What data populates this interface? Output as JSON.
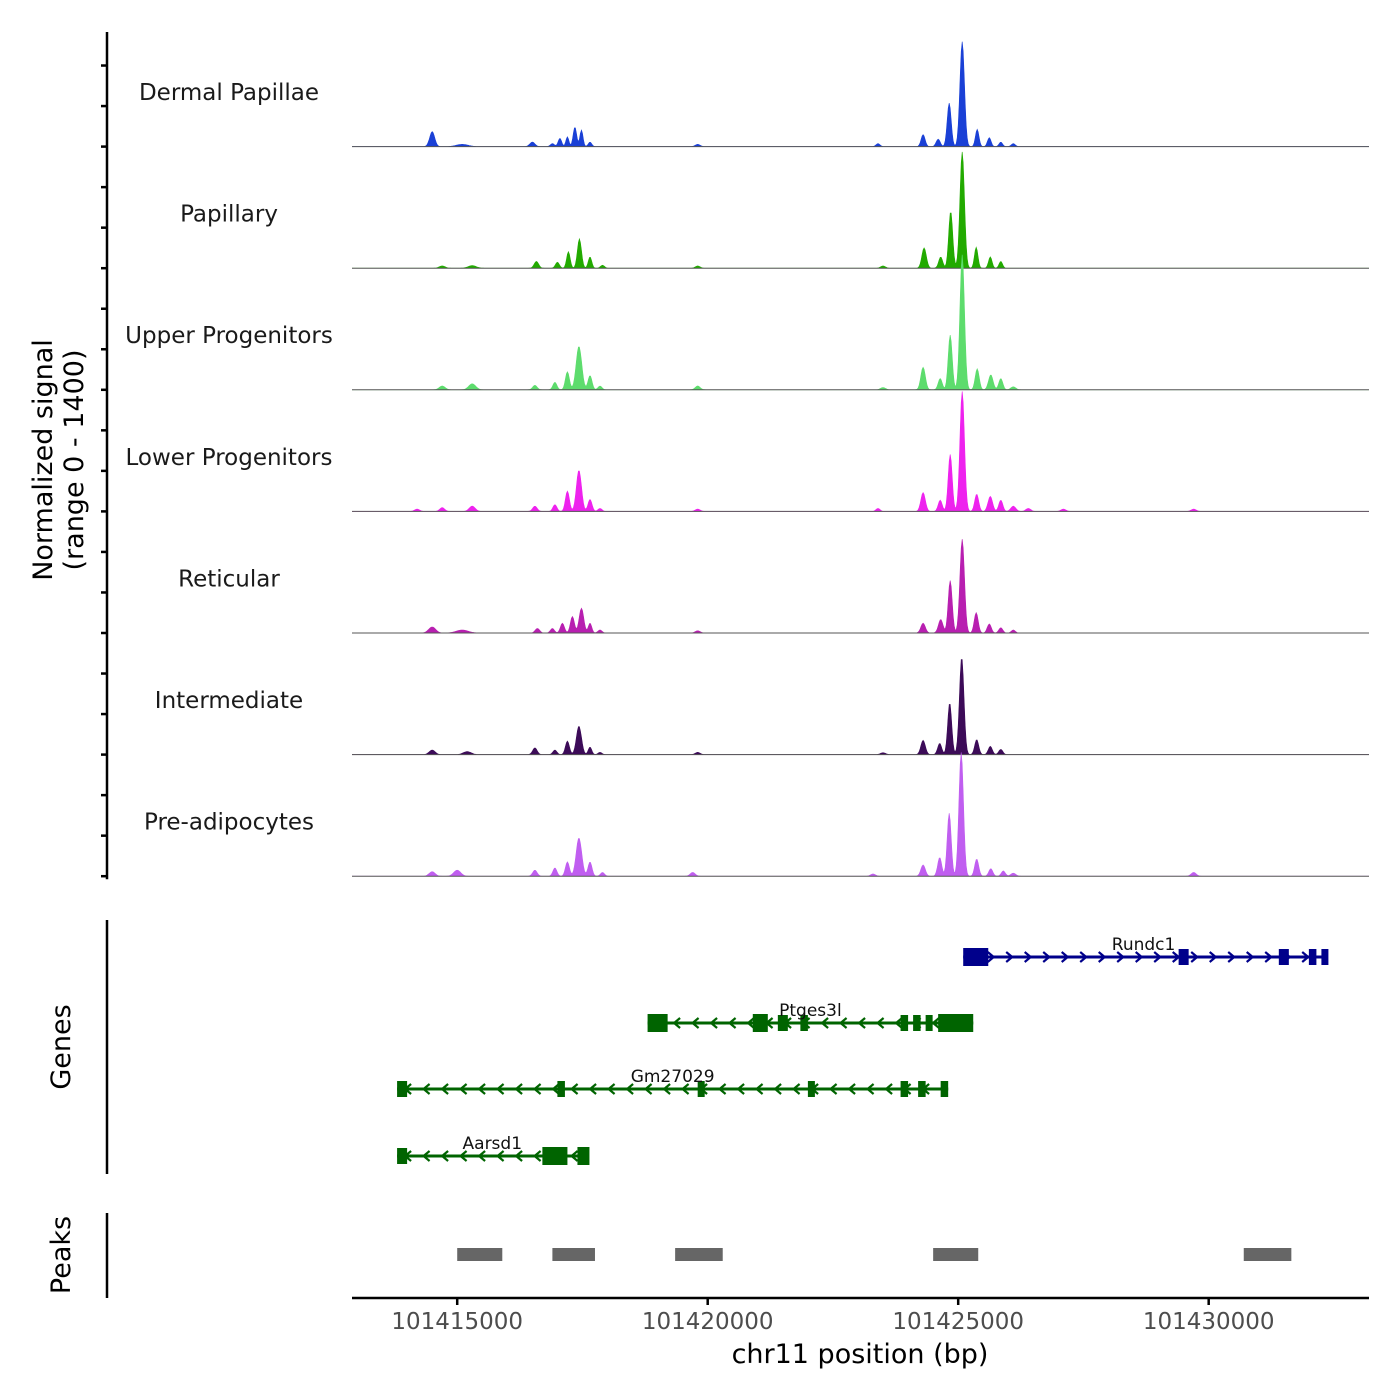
{
  "chart_data": {
    "type": "area",
    "title": "",
    "ylabel_line1": "Normalized signal",
    "ylabel_line2": "(range 0 - 1400)",
    "xlabel": "chr11 position (bp)",
    "xlim": [
      101412900,
      101433200
    ],
    "ylim": [
      0,
      1400
    ],
    "x_ticks": [
      101415000,
      101420000,
      101425000,
      101430000
    ],
    "x_tick_labels": [
      "101415000",
      "101420000",
      "101425000",
      "101430000"
    ],
    "tracks": [
      {
        "name": "Dermal Papillae",
        "color": "#1a40d6",
        "peaks": [
          [
            101414500,
            200,
            50
          ],
          [
            101415100,
            30,
            120
          ],
          [
            101416500,
            60,
            50
          ],
          [
            101416900,
            40,
            40
          ],
          [
            101417050,
            110,
            35
          ],
          [
            101417200,
            130,
            30
          ],
          [
            101417350,
            260,
            35
          ],
          [
            101417480,
            220,
            30
          ],
          [
            101417650,
            60,
            35
          ],
          [
            101419800,
            30,
            50
          ],
          [
            101423400,
            40,
            40
          ],
          [
            101424300,
            160,
            40
          ],
          [
            101424600,
            100,
            40
          ],
          [
            101424820,
            580,
            40
          ],
          [
            101425080,
            1400,
            45
          ],
          [
            101425380,
            230,
            35
          ],
          [
            101425620,
            120,
            35
          ],
          [
            101425850,
            60,
            35
          ],
          [
            101426100,
            40,
            40
          ]
        ]
      },
      {
        "name": "Papillary",
        "color": "#22aa00",
        "peaks": [
          [
            101414700,
            30,
            60
          ],
          [
            101415300,
            35,
            80
          ],
          [
            101416580,
            90,
            45
          ],
          [
            101417000,
            80,
            40
          ],
          [
            101417220,
            220,
            35
          ],
          [
            101417440,
            390,
            40
          ],
          [
            101417650,
            150,
            35
          ],
          [
            101417900,
            40,
            40
          ],
          [
            101419800,
            30,
            50
          ],
          [
            101423500,
            30,
            50
          ],
          [
            101424320,
            270,
            45
          ],
          [
            101424650,
            150,
            40
          ],
          [
            101424850,
            760,
            40
          ],
          [
            101425080,
            1550,
            45
          ],
          [
            101425360,
            280,
            35
          ],
          [
            101425640,
            150,
            35
          ],
          [
            101425850,
            90,
            35
          ]
        ]
      },
      {
        "name": "Upper Progenitors",
        "color": "#5ddc6d",
        "peaks": [
          [
            101414700,
            50,
            60
          ],
          [
            101415300,
            80,
            70
          ],
          [
            101416550,
            60,
            45
          ],
          [
            101416950,
            100,
            40
          ],
          [
            101417200,
            240,
            40
          ],
          [
            101417430,
            580,
            55
          ],
          [
            101417650,
            190,
            40
          ],
          [
            101417850,
            50,
            40
          ],
          [
            101419800,
            50,
            50
          ],
          [
            101423500,
            30,
            50
          ],
          [
            101424300,
            300,
            45
          ],
          [
            101424640,
            150,
            40
          ],
          [
            101424840,
            730,
            40
          ],
          [
            101425080,
            1800,
            45
          ],
          [
            101425380,
            280,
            40
          ],
          [
            101425650,
            200,
            45
          ],
          [
            101425850,
            150,
            40
          ],
          [
            101426100,
            40,
            50
          ]
        ]
      },
      {
        "name": "Lower Progenitors",
        "color": "#ee22ee",
        "peaks": [
          [
            101414200,
            30,
            50
          ],
          [
            101414700,
            50,
            50
          ],
          [
            101415300,
            70,
            60
          ],
          [
            101416550,
            70,
            45
          ],
          [
            101416950,
            90,
            40
          ],
          [
            101417200,
            270,
            40
          ],
          [
            101417430,
            550,
            50
          ],
          [
            101417650,
            160,
            40
          ],
          [
            101417850,
            40,
            40
          ],
          [
            101419800,
            30,
            50
          ],
          [
            101423400,
            40,
            40
          ],
          [
            101424300,
            250,
            45
          ],
          [
            101424640,
            150,
            40
          ],
          [
            101424840,
            760,
            40
          ],
          [
            101425080,
            1600,
            45
          ],
          [
            101425370,
            230,
            40
          ],
          [
            101425640,
            200,
            45
          ],
          [
            101425850,
            150,
            40
          ],
          [
            101426100,
            70,
            50
          ],
          [
            101426400,
            40,
            50
          ],
          [
            101427100,
            30,
            50
          ],
          [
            101429700,
            30,
            50
          ]
        ]
      },
      {
        "name": "Reticular",
        "color": "#b81fb0",
        "peaks": [
          [
            101414500,
            80,
            70
          ],
          [
            101415100,
            40,
            120
          ],
          [
            101416600,
            60,
            45
          ],
          [
            101416900,
            60,
            40
          ],
          [
            101417100,
            130,
            40
          ],
          [
            101417300,
            220,
            40
          ],
          [
            101417480,
            330,
            45
          ],
          [
            101417650,
            130,
            35
          ],
          [
            101417850,
            40,
            40
          ],
          [
            101419800,
            30,
            50
          ],
          [
            101424300,
            130,
            45
          ],
          [
            101424650,
            180,
            45
          ],
          [
            101424840,
            700,
            40
          ],
          [
            101425080,
            1250,
            45
          ],
          [
            101425360,
            270,
            40
          ],
          [
            101425620,
            120,
            40
          ],
          [
            101425850,
            70,
            40
          ],
          [
            101426100,
            40,
            40
          ]
        ]
      },
      {
        "name": "Intermediate",
        "color": "#3c0b58",
        "peaks": [
          [
            101414500,
            60,
            60
          ],
          [
            101415200,
            40,
            80
          ],
          [
            101416550,
            90,
            45
          ],
          [
            101416950,
            60,
            40
          ],
          [
            101417200,
            180,
            40
          ],
          [
            101417430,
            380,
            50
          ],
          [
            101417650,
            100,
            35
          ],
          [
            101417850,
            30,
            40
          ],
          [
            101419800,
            30,
            50
          ],
          [
            101423500,
            25,
            50
          ],
          [
            101424300,
            190,
            45
          ],
          [
            101424630,
            150,
            40
          ],
          [
            101424830,
            690,
            40
          ],
          [
            101425070,
            1300,
            45
          ],
          [
            101425370,
            200,
            40
          ],
          [
            101425640,
            110,
            40
          ],
          [
            101425850,
            70,
            40
          ]
        ]
      },
      {
        "name": "Pre-adipocytes",
        "color": "#c05ef0",
        "peaks": [
          [
            101414500,
            60,
            60
          ],
          [
            101415000,
            80,
            70
          ],
          [
            101416550,
            80,
            45
          ],
          [
            101416950,
            110,
            40
          ],
          [
            101417200,
            190,
            40
          ],
          [
            101417430,
            510,
            55
          ],
          [
            101417650,
            190,
            40
          ],
          [
            101417900,
            50,
            40
          ],
          [
            101419700,
            50,
            50
          ],
          [
            101423300,
            30,
            50
          ],
          [
            101424300,
            150,
            45
          ],
          [
            101424630,
            250,
            40
          ],
          [
            101424820,
            840,
            40
          ],
          [
            101425060,
            1650,
            45
          ],
          [
            101425370,
            230,
            40
          ],
          [
            101425650,
            100,
            40
          ],
          [
            101425900,
            70,
            40
          ],
          [
            101426100,
            40,
            50
          ],
          [
            101429700,
            50,
            50
          ]
        ]
      }
    ],
    "genes": [
      {
        "name": "Rundc1",
        "strand": "+",
        "color": "#00008b",
        "start": 101425100,
        "end": 101432300,
        "exons": [
          [
            101425100,
            101425600,
            "wide"
          ],
          [
            101429400,
            101429600,
            "narrow"
          ],
          [
            101431400,
            101431600,
            "narrow"
          ],
          [
            101432000,
            101432150,
            "narrow"
          ],
          [
            101432250,
            101432300,
            "narrow"
          ]
        ]
      },
      {
        "name": "Ptges3l",
        "strand": "-",
        "color": "#006400",
        "start": 101418800,
        "end": 101425300,
        "exons": [
          [
            101418800,
            101419200,
            "wide"
          ],
          [
            101420900,
            101421200,
            "wide"
          ],
          [
            101421400,
            101421600,
            "narrow"
          ],
          [
            101421850,
            101422000,
            "narrow"
          ],
          [
            101423850,
            101424000,
            "narrow"
          ],
          [
            101424100,
            101424250,
            "narrow"
          ],
          [
            101424350,
            101424450,
            "narrow"
          ],
          [
            101424600,
            101425300,
            "wide"
          ]
        ]
      },
      {
        "name": "Gm27029",
        "strand": "-",
        "color": "#006400",
        "start": 101413800,
        "end": 101424800,
        "exons": [
          [
            101413800,
            101414000,
            "narrow"
          ],
          [
            101417000,
            101417150,
            "narrow"
          ],
          [
            101419800,
            101419900,
            "narrow"
          ],
          [
            101422000,
            101422100,
            "narrow"
          ],
          [
            101423850,
            101424000,
            "narrow"
          ],
          [
            101424200,
            101424350,
            "narrow"
          ],
          [
            101424650,
            101424800,
            "narrow"
          ]
        ]
      },
      {
        "name": "Aarsd1",
        "strand": "-",
        "color": "#006400",
        "start": 101413800,
        "end": 101417600,
        "exons": [
          [
            101413800,
            101414000,
            "narrow"
          ],
          [
            101416700,
            101417200,
            "wide"
          ],
          [
            101417400,
            101417600,
            "wide"
          ]
        ]
      }
    ],
    "peaks_label": "Peaks",
    "genes_label": "Genes",
    "peak_regions": [
      [
        101415000,
        101415900
      ],
      [
        101416900,
        101417750
      ],
      [
        101419350,
        101420300
      ],
      [
        101424500,
        101425400
      ],
      [
        101430700,
        101431650
      ]
    ],
    "peak_color": "#666666"
  }
}
